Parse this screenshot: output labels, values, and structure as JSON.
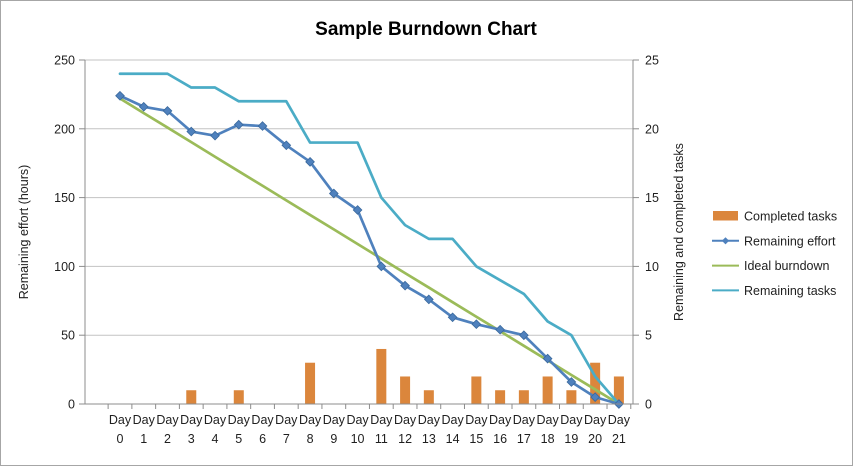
{
  "title": "Sample Burndown Chart",
  "chart_data": {
    "type": "combo-bar-line",
    "categories": [
      "Day 0",
      "Day 1",
      "Day 2",
      "Day 3",
      "Day 4",
      "Day 5",
      "Day 6",
      "Day 7",
      "Day 8",
      "Day 9",
      "Day 10",
      "Day 11",
      "Day 12",
      "Day 13",
      "Day 14",
      "Day 15",
      "Day 16",
      "Day 17",
      "Day 18",
      "Day 19",
      "Day 20",
      "Day 21"
    ],
    "left_axis": {
      "label": "Remaining effort (hours)",
      "min": 0,
      "max": 250,
      "ticks": [
        0,
        50,
        100,
        150,
        200,
        250
      ]
    },
    "right_axis": {
      "label": "Remaining and completed tasks",
      "min": 0,
      "max": 25,
      "ticks": [
        0,
        5,
        10,
        15,
        20,
        25
      ]
    },
    "grid": "horizontal-only",
    "legend_position": "right",
    "series": [
      {
        "name": "Completed tasks",
        "type": "bar",
        "axis": "right",
        "color": "#DB863C",
        "values": [
          0,
          0,
          0,
          1,
          0,
          1,
          0,
          0,
          3,
          0,
          0,
          4,
          2,
          1,
          0,
          2,
          1,
          1,
          2,
          1,
          3,
          2
        ]
      },
      {
        "name": "Remaining effort",
        "type": "line",
        "marker": "diamond",
        "axis": "left",
        "color": "#4F81BD",
        "values": [
          224,
          216,
          213,
          198,
          195,
          203,
          202,
          188,
          176,
          153,
          141,
          100,
          86,
          76,
          63,
          58,
          54,
          50,
          33,
          16,
          5,
          0
        ]
      },
      {
        "name": "Ideal burndown",
        "type": "line",
        "axis": "left",
        "color": "#9BBB59",
        "values": [
          222,
          211.4,
          200.9,
          190.3,
          179.7,
          169.1,
          158.6,
          148,
          137.4,
          126.9,
          116.3,
          105.7,
          95.1,
          84.6,
          74,
          63.4,
          52.9,
          42.3,
          31.7,
          21.1,
          10.6,
          0
        ]
      },
      {
        "name": "Remaining tasks",
        "type": "line",
        "axis": "right",
        "color": "#4BACC6",
        "values": [
          24,
          24,
          24,
          23,
          23,
          22,
          22,
          22,
          19,
          19,
          19,
          15,
          13,
          12,
          12,
          10,
          9,
          8,
          6,
          5,
          2,
          0
        ]
      }
    ],
    "colors": {
      "gridline": "#C3C3C3",
      "axis_line": "#8C8C8C",
      "text": "#1f1f1f"
    }
  }
}
